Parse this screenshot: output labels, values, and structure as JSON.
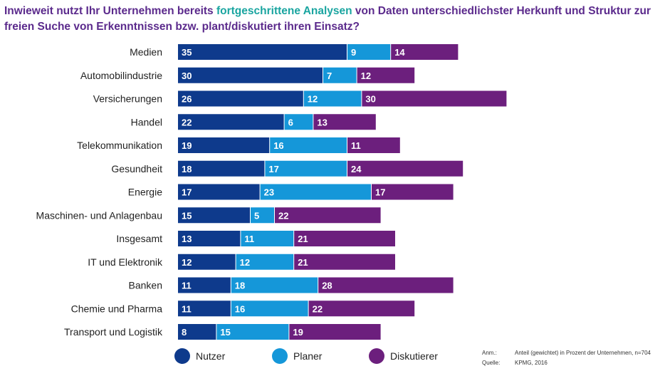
{
  "title": {
    "part1": "Inwieweit nutzt Ihr Unternehmen bereits ",
    "highlight": "fortgeschrittene Analysen",
    "part2": " von Daten unterschiedlichster Herkunft und Struktur zur freien Suche von Erkenntnissen bzw. plant/diskutiert ihren Einsatz?"
  },
  "colors": {
    "title": "#5b2a8c",
    "highlight": "#1aa5a0",
    "nutzer": "#0e3a8c",
    "planer": "#1597d9",
    "diskutierer": "#6c1f7d"
  },
  "chart_data": {
    "type": "bar",
    "orientation": "horizontal",
    "stacked": true,
    "categories": [
      "Medien",
      "Automobilindustrie",
      "Versicherungen",
      "Handel",
      "Telekommunikation",
      "Gesundheit",
      "Energie",
      "Maschinen- und Anlagenbau",
      "Insgesamt",
      "IT und Elektronik",
      "Banken",
      "Chemie und Pharma",
      "Transport und Logistik"
    ],
    "series": [
      {
        "name": "Nutzer",
        "color": "#0e3a8c",
        "values": [
          35,
          30,
          26,
          22,
          19,
          18,
          17,
          15,
          13,
          12,
          11,
          11,
          8
        ]
      },
      {
        "name": "Planer",
        "color": "#1597d9",
        "values": [
          9,
          7,
          12,
          6,
          16,
          17,
          23,
          5,
          11,
          12,
          18,
          16,
          15
        ]
      },
      {
        "name": "Diskutierer",
        "color": "#6c1f7d",
        "values": [
          14,
          12,
          30,
          13,
          11,
          24,
          17,
          22,
          21,
          21,
          28,
          22,
          19
        ]
      }
    ],
    "legend_position": "bottom",
    "grid": false
  },
  "legend": [
    {
      "label": "Nutzer",
      "color": "#0e3a8c"
    },
    {
      "label": "Planer",
      "color": "#1597d9"
    },
    {
      "label": "Diskutierer",
      "color": "#6c1f7d"
    }
  ],
  "notes": {
    "anm_key": "Anm.:",
    "anm_value": "Anteil (gewichtet) in Prozent der Unternehmen, n=704",
    "quelle_key": "Quelle:",
    "quelle_value": "KPMG, 2016"
  }
}
